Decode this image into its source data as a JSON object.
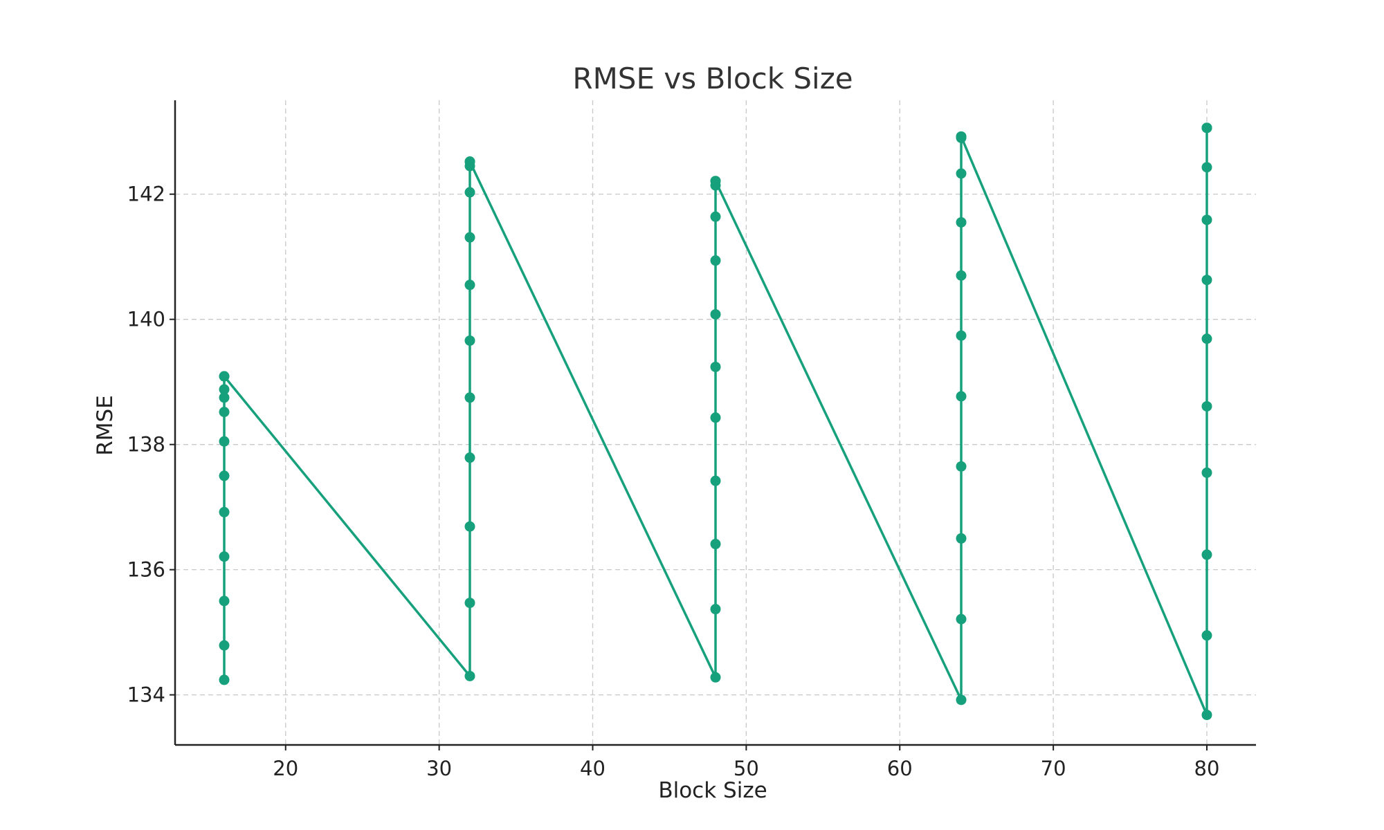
{
  "chart_data": {
    "type": "line",
    "title": "RMSE vs Block Size",
    "xlabel": "Block Size",
    "ylabel": "RMSE",
    "xlim": [
      12.8,
      83.2
    ],
    "ylim": [
      133.2,
      143.5
    ],
    "xticks": [
      20,
      30,
      40,
      50,
      60,
      70,
      80
    ],
    "yticks": [
      134,
      136,
      138,
      140,
      142
    ],
    "grid": true,
    "series": [
      {
        "name": "RMSE",
        "color": "#16a07c",
        "marker": "circle",
        "x": [
          16,
          16,
          16,
          16,
          16,
          16,
          16,
          16,
          16,
          16,
          16,
          16,
          32,
          32,
          32,
          32,
          32,
          32,
          32,
          32,
          32,
          32,
          32,
          32,
          48,
          48,
          48,
          48,
          48,
          48,
          48,
          48,
          48,
          48,
          48,
          48,
          64,
          64,
          64,
          64,
          64,
          64,
          64,
          64,
          64,
          64,
          64,
          64,
          80,
          80,
          80,
          80,
          80,
          80,
          80,
          80,
          80,
          80,
          80,
          80
        ],
        "y": [
          134.24,
          134.79,
          135.5,
          136.21,
          136.92,
          137.5,
          138.05,
          138.52,
          138.75,
          138.88,
          139.09,
          139.09,
          134.3,
          135.47,
          136.69,
          137.79,
          138.75,
          139.66,
          140.55,
          141.31,
          142.03,
          142.45,
          142.52,
          142.52,
          134.28,
          135.37,
          136.41,
          137.42,
          138.43,
          139.24,
          140.08,
          140.94,
          141.64,
          142.14,
          142.21,
          142.21,
          133.92,
          135.21,
          136.5,
          137.65,
          138.77,
          139.74,
          140.7,
          141.55,
          142.33,
          142.9,
          142.92,
          142.92,
          133.68,
          134.95,
          136.24,
          137.55,
          138.61,
          139.69,
          140.63,
          141.59,
          142.43,
          143.06,
          143.06,
          143.06
        ]
      }
    ]
  }
}
